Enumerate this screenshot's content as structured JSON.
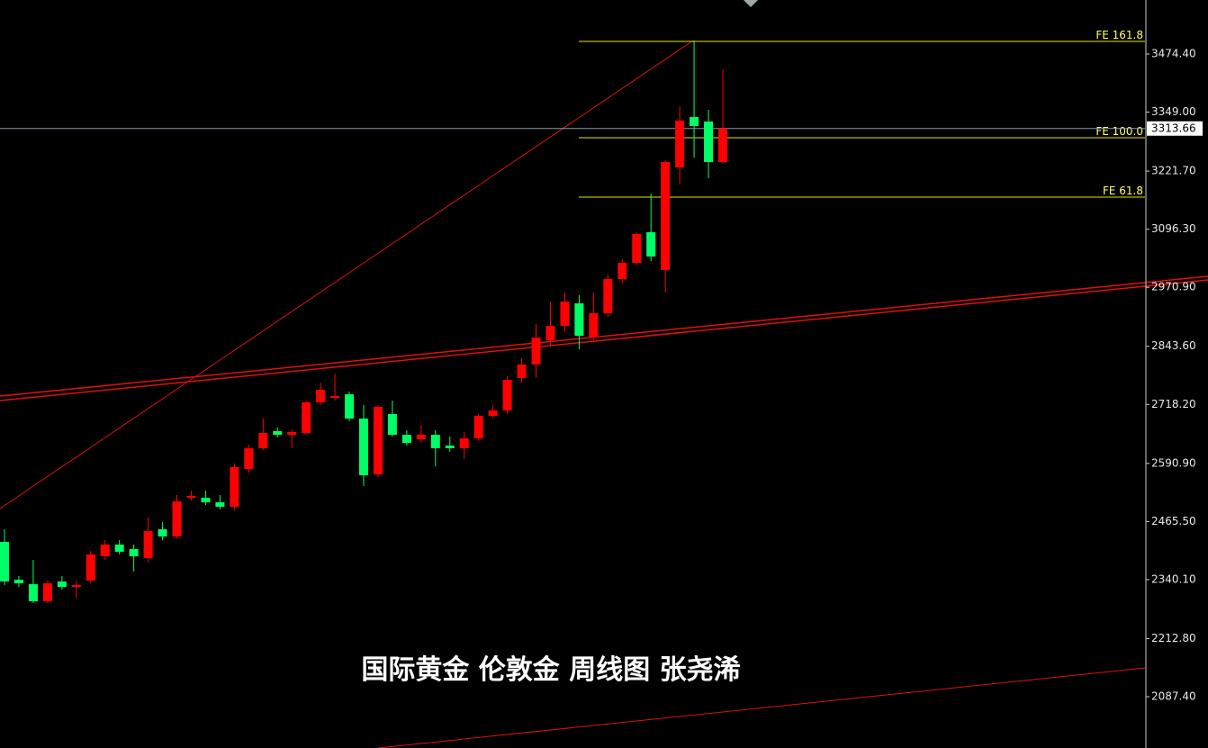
{
  "chart_data": {
    "type": "candlestick",
    "title": "国际黄金 伦敦金 周线图 张尧浠",
    "up_color": "#ff0000",
    "down_color": "#00ff66",
    "ylim": [
      1976.7,
      3591.0
    ],
    "yticks": [
      {
        "value": 3474.4,
        "label": "3474.40"
      },
      {
        "value": 3349.0,
        "label": "3349.00"
      },
      {
        "value": 3221.7,
        "label": "3221.70"
      },
      {
        "value": 3096.3,
        "label": "3096.30"
      },
      {
        "value": 2970.9,
        "label": "2970.90"
      },
      {
        "value": 2843.6,
        "label": "2843.60"
      },
      {
        "value": 2718.2,
        "label": "2718.20"
      },
      {
        "value": 2590.9,
        "label": "2590.90"
      },
      {
        "value": 2465.5,
        "label": "2465.50"
      },
      {
        "value": 2340.1,
        "label": "2340.10"
      },
      {
        "value": 2212.8,
        "label": "2212.80"
      },
      {
        "value": 2087.4,
        "label": "2087.40"
      }
    ],
    "last_price": 3313.66,
    "levels": [
      {
        "label": "FE 161.8",
        "value": 3501.6
      },
      {
        "label": "FE 100.0",
        "value": 3293.8
      },
      {
        "label": "FE 61.8",
        "value": 3165.6
      }
    ],
    "open": [
      2421.6,
      2340.0,
      2330.3,
      2293.3,
      2336.1,
      2324.4,
      2338.0,
      2390.5,
      2415.7,
      2406.0,
      2386.6,
      2448.8,
      2433.2,
      2516.7,
      2516.7,
      2507.0,
      2497.3,
      2578.9,
      2623.6,
      2660.5,
      2652.7,
      2656.6,
      2722.7,
      2732.4,
      2740.1,
      2687.7,
      2567.3,
      2697.4,
      2652.7,
      2643.0,
      2652.7,
      2629.4,
      2623.6,
      2644.9,
      2693.5,
      2705.2,
      2775.1,
      2804.2,
      2856.7,
      2887.8,
      2936.3,
      2862.5,
      2915.0,
      2988.8,
      3023.8,
      3089.8,
      3008.2,
      3229.7,
      3338.5,
      3328.7,
      3241.3
    ],
    "high": [
      2448.8,
      2347.7,
      2382.7,
      2338.0,
      2347.7,
      2338.0,
      2402.1,
      2425.4,
      2425.4,
      2415.7,
      2474.0,
      2464.3,
      2522.6,
      2532.3,
      2532.3,
      2522.6,
      2590.6,
      2631.4,
      2687.7,
      2668.3,
      2664.4,
      2726.5,
      2765.4,
      2784.8,
      2746.0,
      2716.8,
      2716.8,
      2726.5,
      2662.4,
      2674.1,
      2662.4,
      2648.8,
      2658.6,
      2697.4,
      2716.8,
      2779.0,
      2817.8,
      2891.7,
      2940.2,
      2959.7,
      2953.8,
      2959.7,
      2998.5,
      3031.5,
      3089.8,
      3173.3,
      3245.2,
      3361.8,
      3503.6,
      3354.0,
      3441.4
    ],
    "low": [
      2328.3,
      2324.4,
      2289.5,
      2289.5,
      2318.6,
      2299.2,
      2332.2,
      2382.7,
      2394.4,
      2357.5,
      2376.9,
      2425.4,
      2429.3,
      2510.9,
      2501.2,
      2491.5,
      2489.5,
      2571.1,
      2619.7,
      2646.9,
      2623.6,
      2652.7,
      2716.8,
      2726.5,
      2681.9,
      2542.0,
      2561.4,
      2648.8,
      2629.4,
      2635.2,
      2584.7,
      2615.8,
      2600.3,
      2639.1,
      2687.7,
      2697.4,
      2765.4,
      2775.1,
      2843.1,
      2876.1,
      2837.3,
      2856.7,
      2907.2,
      2979.1,
      3017.9,
      3027.6,
      2959.7,
      3192.8,
      3251.0,
      3206.4,
      3237.4
    ],
    "close": [
      2336.1,
      2332.2,
      2293.3,
      2332.2,
      2324.4,
      2328.3,
      2394.4,
      2415.7,
      2400.2,
      2390.5,
      2444.9,
      2433.2,
      2509.0,
      2520.6,
      2507.0,
      2497.3,
      2582.8,
      2623.6,
      2656.6,
      2652.7,
      2658.6,
      2722.7,
      2749.9,
      2736.3,
      2687.7,
      2565.3,
      2712.9,
      2652.7,
      2635.2,
      2652.7,
      2623.6,
      2623.6,
      2644.9,
      2693.5,
      2705.2,
      2771.2,
      2804.2,
      2862.5,
      2887.8,
      2940.2,
      2866.4,
      2915.0,
      2988.8,
      3023.8,
      3085.9,
      3037.4,
      3241.3,
      3330.7,
      3319.0,
      3241.3,
      3313.66
    ]
  }
}
